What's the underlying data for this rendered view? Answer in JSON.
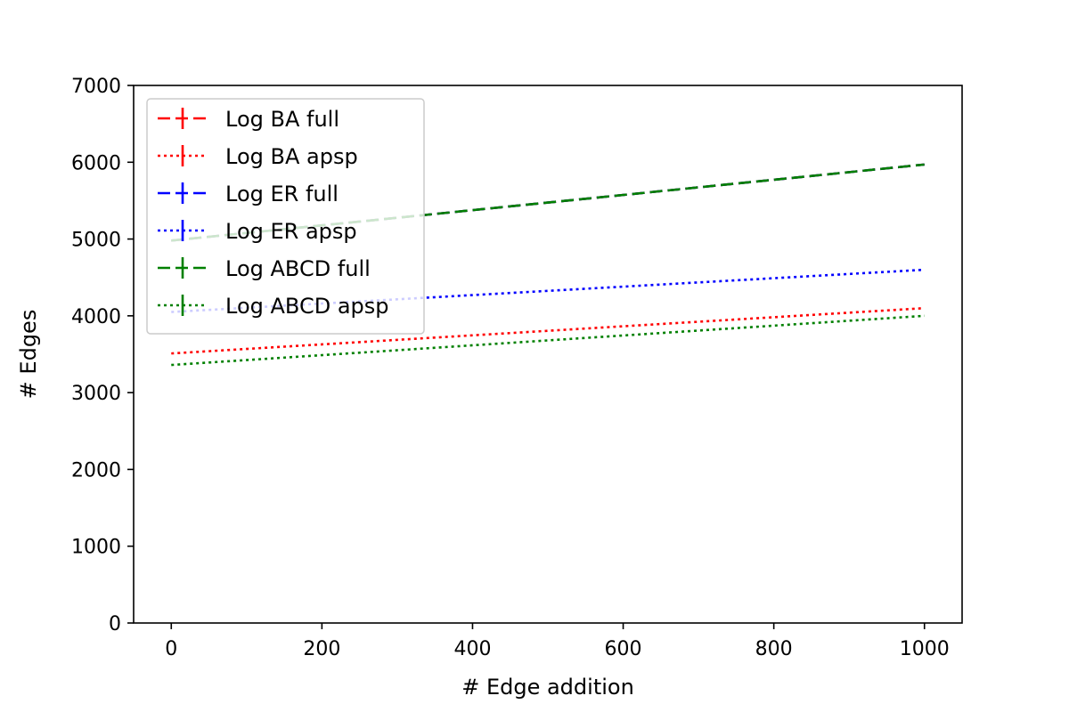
{
  "chart_data": {
    "type": "line",
    "title": "",
    "xlabel": "# Edge addition",
    "ylabel": "# Edges",
    "xlim": [
      -50,
      1050
    ],
    "ylim": [
      0,
      7000
    ],
    "xticks": [
      0,
      200,
      400,
      600,
      800,
      1000
    ],
    "yticks": [
      0,
      1000,
      2000,
      3000,
      4000,
      5000,
      6000,
      7000
    ],
    "grid": false,
    "legend_position": "top-left",
    "x": [
      0,
      1000
    ],
    "series": [
      {
        "name": "Log BA full",
        "values": [
          4980,
          5970
        ],
        "color": "#ff0000",
        "linestyle": "dashed"
      },
      {
        "name": "Log BA apsp",
        "values": [
          3510,
          4100
        ],
        "color": "#ff0000",
        "linestyle": "dotted"
      },
      {
        "name": "Log ER full",
        "values": [
          4980,
          5970
        ],
        "color": "#0000ff",
        "linestyle": "dashed"
      },
      {
        "name": "Log ER apsp",
        "values": [
          4050,
          4600
        ],
        "color": "#0000ff",
        "linestyle": "dotted"
      },
      {
        "name": "Log ABCD full",
        "values": [
          4980,
          5970
        ],
        "color": "#008000",
        "linestyle": "dashed"
      },
      {
        "name": "Log ABCD apsp",
        "values": [
          3360,
          4000
        ],
        "color": "#008000",
        "linestyle": "dotted"
      }
    ]
  }
}
